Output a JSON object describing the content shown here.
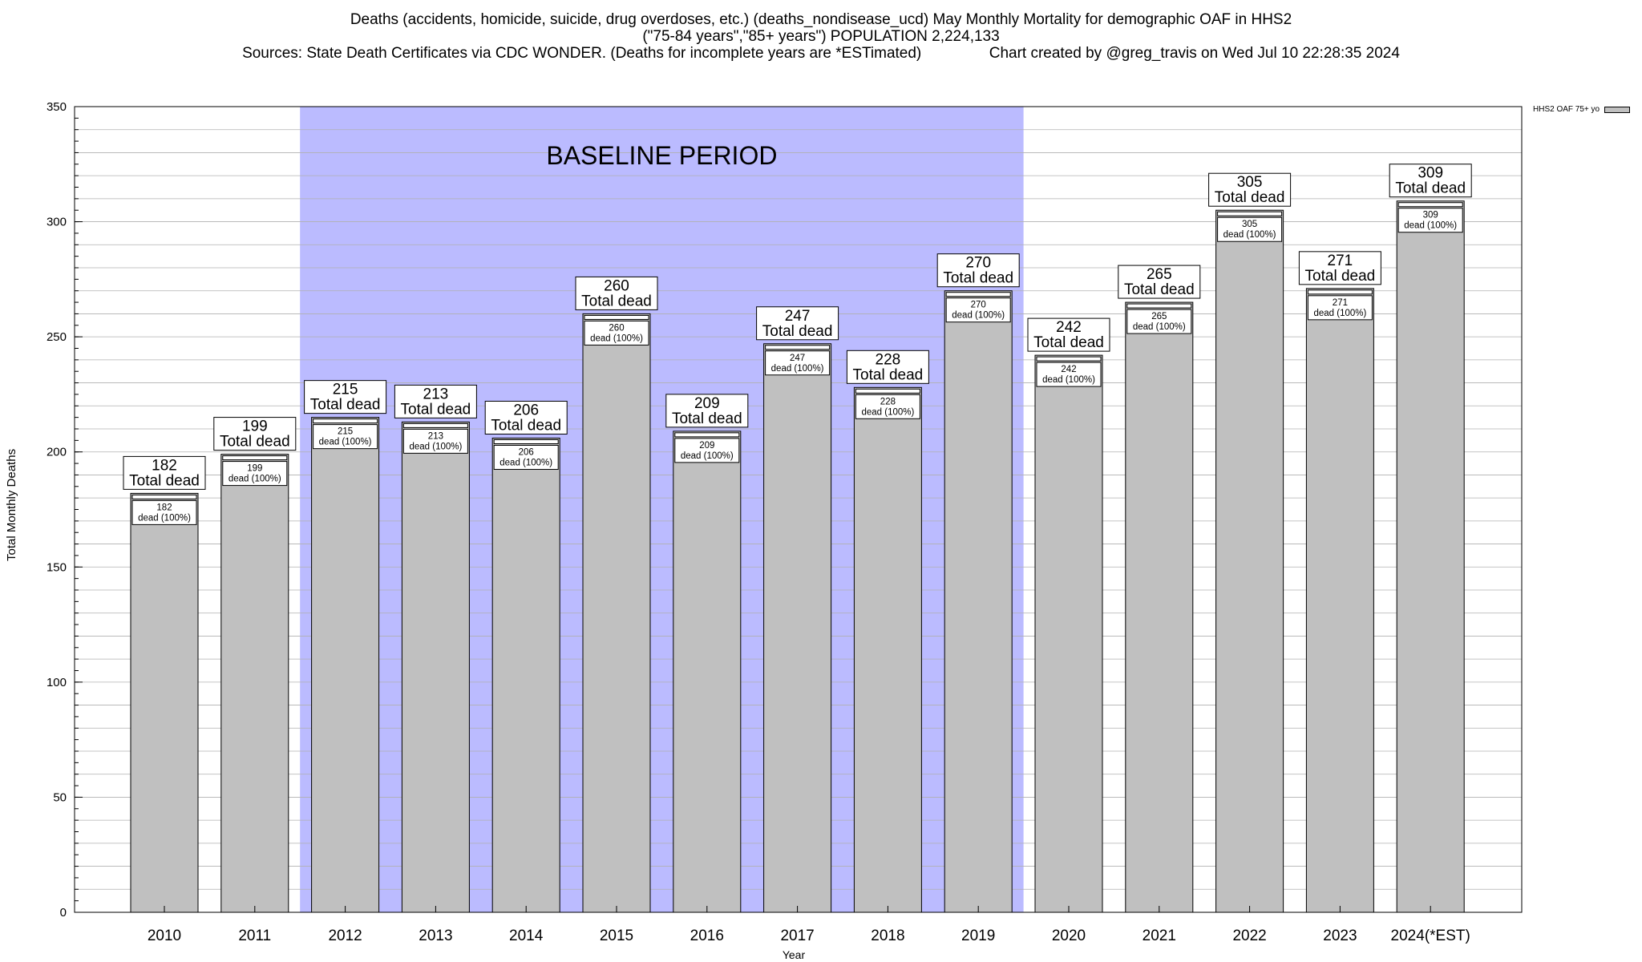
{
  "header": {
    "line1": "Deaths (accidents, homicide, suicide, drug overdoses, etc.) (deaths_nondisease_ucd) May Monthly Mortality for demographic OAF in HHS2",
    "line2": "(\"75-84 years\",\"85+ years\") POPULATION 2,224,133",
    "line3": "Sources: State Death Certificates via CDC WONDER. (Deaths for incomplete years are *ESTimated)                Chart created by @greg_travis on Wed Jul 10 22:28:35 2024"
  },
  "chart_data": {
    "type": "bar",
    "title": "Deaths (accidents, homicide, suicide, drug overdoses, etc.) (deaths_nondisease_ucd) May Monthly Mortality for demographic OAF in HHS2",
    "xlabel": "Year",
    "ylabel": "Total Monthly Deaths",
    "ylim": [
      0,
      350
    ],
    "yticks": [
      0,
      50,
      100,
      150,
      200,
      250,
      300,
      350
    ],
    "categories": [
      "2010",
      "2011",
      "2012",
      "2013",
      "2014",
      "2015",
      "2016",
      "2017",
      "2018",
      "2019",
      "2020",
      "2021",
      "2022",
      "2023",
      "2024(*EST)"
    ],
    "series": [
      {
        "name": "HHS2 OAF 75+ yo",
        "values": [
          182,
          199,
          215,
          213,
          206,
          260,
          209,
          247,
          228,
          270,
          242,
          265,
          305,
          271,
          309
        ]
      }
    ],
    "top_label_suffix": "Total dead",
    "inner_label_suffix": "dead (100%)",
    "baseline_label": "BASELINE PERIOD",
    "baseline_range": [
      "2012",
      "2019"
    ],
    "grid": true,
    "legend_position": "top-right",
    "colors": {
      "bar": "#c0c0c0",
      "baseline": "#bbbbff",
      "grid": "#b0b0b0"
    }
  }
}
